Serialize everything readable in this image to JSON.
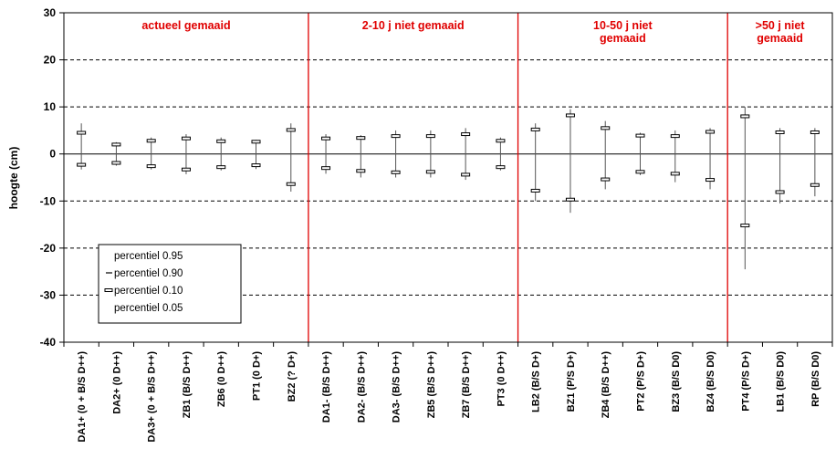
{
  "chart_data": {
    "type": "range",
    "ylabel": "hoogte (cm)",
    "ylim": [
      -40,
      30
    ],
    "yticks": [
      -40,
      -30,
      -20,
      -10,
      0,
      10,
      20,
      30
    ],
    "grid": "horizontal dashed at 20, 10, -10, -20, -30; solid at 0",
    "colors": {
      "divider": "#e00000",
      "section_text": "#e00000",
      "whisker": "#000000"
    },
    "sections": [
      {
        "label_lines": [
          "actueel gemaaid"
        ],
        "start": 0,
        "end": 6
      },
      {
        "label_lines": [
          "2-10 j niet gemaaid"
        ],
        "start": 7,
        "end": 12
      },
      {
        "label_lines": [
          "10-50 j niet",
          "gemaaid"
        ],
        "start": 13,
        "end": 18
      },
      {
        "label_lines": [
          ">50 j niet",
          "gemaaid"
        ],
        "start": 19,
        "end": 21
      }
    ],
    "legend": {
      "placement": "lower-left",
      "entries": [
        "percentiel 0.95",
        "percentiel 0.90",
        "percentiel 0.10",
        "percentiel 0.05"
      ]
    },
    "categories": [
      "DA1+ (0 + B/S D++)",
      "DA2+ (0 D++)",
      "DA3+ (0 + B/S D++)",
      "ZB1 (B/S D++)",
      "ZB6 (0 D++)",
      "PT1 (0 D+)",
      "BZ2 (? D+)",
      "DA1- (B/S D++)",
      "DA2- (B/S D++)",
      "DA3- (B/S D++)",
      "ZB5 (B/S D++)",
      "ZB7 (B/S D++)",
      "PT3 (0 D++)",
      "LB2 (B/S D+)",
      "BZ1 (P/S D+)",
      "ZB4 (B/S D++)",
      "PT2 (P/S D+)",
      "BZ3 (B/S D0)",
      "BZ4 (B/S D0)",
      "PT4 (P/S D+)",
      "LB1 (B/S D0)",
      "RP (B/S D0)"
    ],
    "series": [
      {
        "name": "percentiel 0.95",
        "values": [
          6.5,
          2.5,
          3.5,
          4.2,
          3.5,
          3,
          6.5,
          4.2,
          4,
          5,
          5,
          5.5,
          3.5,
          6.5,
          9.5,
          7,
          4.5,
          5,
          5.5,
          10,
          5.5,
          5.5
        ]
      },
      {
        "name": "percentiel 0.90",
        "values": [
          4.5,
          2,
          2.8,
          3.3,
          2.7,
          2.6,
          5.1,
          3.3,
          3.4,
          3.8,
          3.8,
          4.2,
          2.8,
          5.2,
          8.2,
          5.5,
          3.9,
          3.8,
          4.7,
          8,
          4.6,
          4.6
        ]
      },
      {
        "name": "percentiel 0.10",
        "values": [
          -2.3,
          -1.9,
          -2.6,
          -3.3,
          -2.8,
          -2.4,
          -6.4,
          -3,
          -3.6,
          -3.9,
          -3.8,
          -4.4,
          -2.8,
          -7.8,
          -9.7,
          -5.4,
          -3.8,
          -4.2,
          -5.5,
          -15.2,
          -8.1,
          -6.6
        ]
      },
      {
        "name": "percentiel 0.05",
        "values": [
          -3.3,
          -2.5,
          -3.3,
          -4.3,
          -3.5,
          -3.2,
          -8,
          -4.2,
          -5,
          -5,
          -5,
          -5.5,
          -3.5,
          -10,
          -12.5,
          -7.5,
          -4.5,
          -6,
          -7.5,
          -24.5,
          -10.5,
          -9
        ]
      }
    ]
  }
}
